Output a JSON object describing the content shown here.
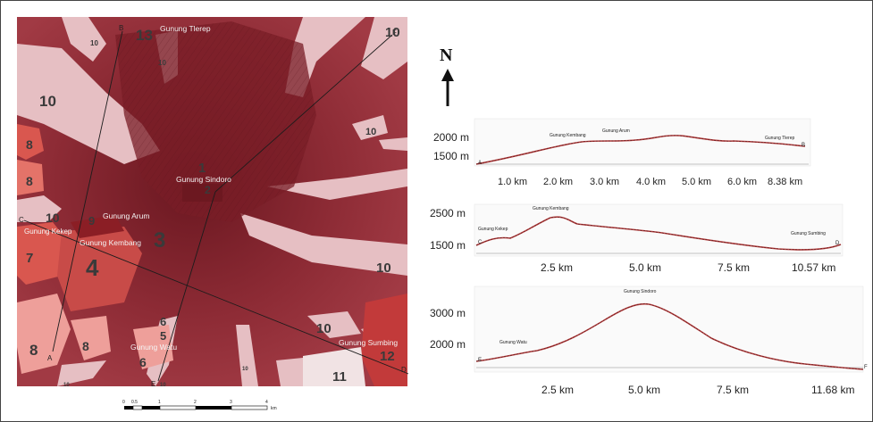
{
  "north_label": "N",
  "map": {
    "peak_labels": [
      {
        "key": "tlerep",
        "text": "Gunung Tlerep"
      },
      {
        "key": "sindoro",
        "text": "Gunung Sindoro"
      },
      {
        "key": "arum",
        "text": "Gunung Arum"
      },
      {
        "key": "kekep",
        "text": "Gunung Kekep"
      },
      {
        "key": "kembang",
        "text": "Gunung Kembang"
      },
      {
        "key": "watu",
        "text": "Gunung Watu"
      },
      {
        "key": "sumbing",
        "text": "Gunung Sumbing"
      }
    ],
    "section_points": [
      "A",
      "B",
      "C",
      "D",
      "E",
      "F"
    ],
    "unit_numbers": [
      "1",
      "2",
      "3",
      "4",
      "5",
      "6",
      "6",
      "6",
      "7",
      "8",
      "8",
      "8",
      "8",
      "9",
      "10",
      "10",
      "10",
      "10",
      "10",
      "10",
      "10",
      "10",
      "10",
      "10",
      "10",
      "11",
      "12",
      "13"
    ],
    "scale_bar": {
      "labels": [
        "0",
        "0.5",
        "1",
        "2",
        "3",
        "4"
      ],
      "unit": "km"
    },
    "colors": {
      "base": "#a13a44",
      "dark": "#6e1a22",
      "light": "#e6bfc3",
      "orange": "#d9574f",
      "highlight": "#ee9f9a"
    }
  },
  "profiles": [
    {
      "start": "A",
      "end": "B",
      "y_ticks": [
        "2000 m",
        "1500 m"
      ],
      "x_ticks": [
        "1.0 km",
        "2.0 km",
        "3.0 km",
        "4.0 km",
        "5.0 km",
        "6.0 km",
        "8.38 km"
      ],
      "annotations": [
        "Gunung Kembang",
        "Gunung Arum",
        "Gunung Tlerep"
      ]
    },
    {
      "start": "C",
      "end": "D",
      "y_ticks": [
        "2500 m",
        "1500 m"
      ],
      "x_ticks": [
        "2.5 km",
        "5.0 km",
        "7.5 km",
        "10.57 km"
      ],
      "annotations": [
        "Gunung Kekep",
        "Gunung Kembang",
        "Gunung Sumbing"
      ]
    },
    {
      "start": "E",
      "end": "F",
      "y_ticks": [
        "3000 m",
        "2000 m"
      ],
      "x_ticks": [
        "2.5 km",
        "5.0 km",
        "7.5 km",
        "11.68 km"
      ],
      "annotations": [
        "Gunung Watu",
        "Gunung Sindoro"
      ]
    }
  ]
}
